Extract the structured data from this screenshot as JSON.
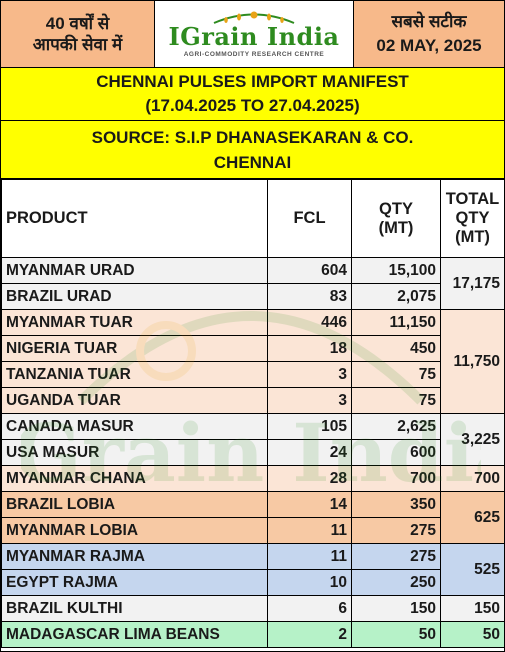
{
  "header": {
    "left_line1": "40 वर्षों से",
    "left_line2": "आपकी सेवा में",
    "logo_name": "IGrain India",
    "logo_tagline": "AGRI-COMMODITY RESEARCH CENTRE",
    "right_line1": "सबसे सटीक",
    "right_line2": "02 MAY, 2025"
  },
  "title": {
    "line1": "CHENNAI PULSES IMPORT MANIFEST",
    "line2": "(17.04.2025 TO 27.04.2025)"
  },
  "source": {
    "line1": "SOURCE: S.I.P DHANASEKARAN & CO.",
    "line2": "CHENNAI"
  },
  "table": {
    "headers": {
      "product": "PRODUCT",
      "fcl": "FCL",
      "qty_line1": "QTY",
      "qty_line2": "(MT)",
      "total_line1": "TOTAL",
      "total_line2": "QTY",
      "total_line3": "(MT)"
    },
    "rows": [
      {
        "product": "MYANMAR URAD",
        "fcl": "604",
        "qty": "15,100"
      },
      {
        "product": "BRAZIL URAD",
        "fcl": "83",
        "qty": "2,075"
      },
      {
        "product": "MYANMAR TUAR",
        "fcl": "446",
        "qty": "11,150"
      },
      {
        "product": "NIGERIA TUAR",
        "fcl": "18",
        "qty": "450"
      },
      {
        "product": "TANZANIA TUAR",
        "fcl": "3",
        "qty": "75"
      },
      {
        "product": "UGANDA TUAR",
        "fcl": "3",
        "qty": "75"
      },
      {
        "product": "CANADA MASUR",
        "fcl": "105",
        "qty": "2,625"
      },
      {
        "product": "USA MASUR",
        "fcl": "24",
        "qty": "600"
      },
      {
        "product": "MYANMAR CHANA",
        "fcl": "28",
        "qty": "700"
      },
      {
        "product": "BRAZIL LOBIA",
        "fcl": "14",
        "qty": "350"
      },
      {
        "product": "MYANMAR LOBIA",
        "fcl": "11",
        "qty": "275"
      },
      {
        "product": "MYANMAR RAJMA",
        "fcl": "11",
        "qty": "275"
      },
      {
        "product": "EGYPT RAJMA",
        "fcl": "10",
        "qty": "250"
      },
      {
        "product": "BRAZIL KULTHI",
        "fcl": "6",
        "qty": "150"
      },
      {
        "product": "MADAGASCAR LIMA BEANS",
        "fcl": "2",
        "qty": "50"
      }
    ],
    "totals": {
      "urad": "17,175",
      "tuar": "11,750",
      "masur": "3,225",
      "chana": "700",
      "lobia": "625",
      "rajma": "525",
      "kulthi": "150",
      "lima_beans": "50"
    }
  },
  "watermark_text": "IGrain India",
  "colors": {
    "header_peach": "#f7b98a",
    "yellow_band": "#ffff00",
    "logo_green": "#2e8b1f",
    "row_white": "#f2f2f2",
    "row_peach": "#fbe5d6",
    "row_orange": "#f7c9a4",
    "row_blue": "#c5d6ee",
    "row_green": "#b6f2c8"
  }
}
